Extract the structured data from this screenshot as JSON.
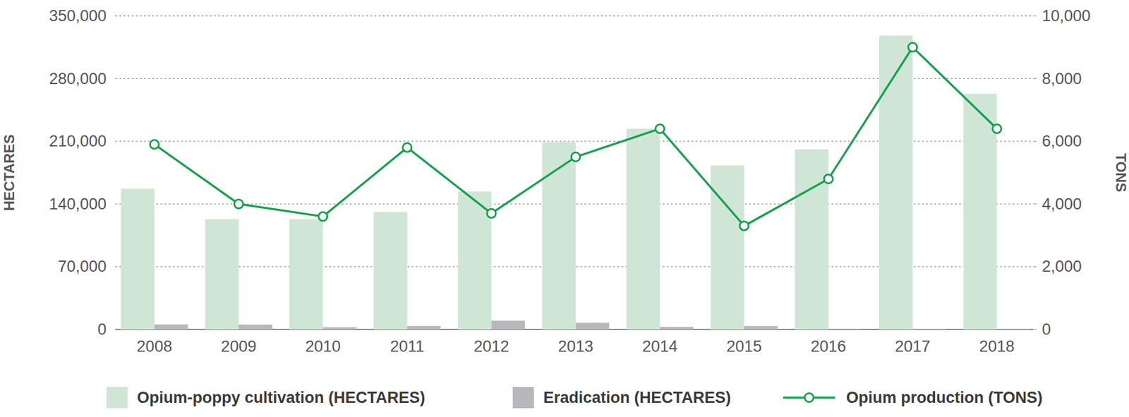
{
  "chart_data": {
    "type": "bar",
    "categories": [
      "2008",
      "2009",
      "2010",
      "2011",
      "2012",
      "2013",
      "2014",
      "2015",
      "2016",
      "2017",
      "2018"
    ],
    "series": [
      {
        "name": "Opium-poppy cultivation (HECTARES)",
        "color": "#cfe6d6",
        "values": [
          157000,
          123000,
          123000,
          131000,
          154000,
          209000,
          224000,
          183000,
          201000,
          328000,
          263000
        ]
      },
      {
        "name": "Eradication (HECTARES)",
        "color": "#b7b7bc",
        "values": [
          5480,
          5351,
          2316,
          3810,
          9672,
          7348,
          2692,
          3760,
          355,
          750,
          406
        ]
      },
      {
        "name": "Opium production (TONS)",
        "type": "line",
        "axis": "y2",
        "color": "#19a04d",
        "marker": "circle",
        "values": [
          5900,
          4000,
          3600,
          5800,
          3700,
          5500,
          6400,
          3300,
          4800,
          9000,
          6400
        ]
      }
    ],
    "y_label": "HECTARES",
    "y2_label": "TONS",
    "ylim": [
      0,
      350000
    ],
    "yticks": [
      0,
      {
        "value": 70000,
        "label": "70,000"
      },
      {
        "value": 140000,
        "label": "140,000"
      },
      {
        "value": 210000,
        "label": "210,000"
      },
      {
        "value": 280000,
        "label": "280,000"
      },
      {
        "value": 350000,
        "label": "350,000"
      }
    ],
    "y2lim": [
      0,
      10000
    ],
    "y2ticks": [
      0,
      {
        "value": 2000,
        "label": "2,000"
      },
      {
        "value": 4000,
        "label": "4,000"
      },
      {
        "value": 6000,
        "label": "6,000"
      },
      {
        "value": 8000,
        "label": "8,000"
      },
      {
        "value": 10000,
        "label": "10,000"
      }
    ],
    "grid": true,
    "legend": "bottom"
  }
}
